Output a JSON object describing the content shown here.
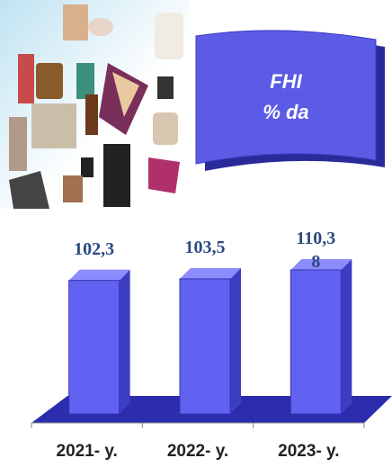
{
  "chart_data": {
    "type": "bar3d",
    "title": "FHI",
    "subtitle": "% da",
    "categories": [
      "2021- y.",
      "2022- y.",
      "2023- y."
    ],
    "values": [
      102.3,
      103.5,
      110.38
    ],
    "value_labels": [
      "102,3",
      "103,5",
      "110,38"
    ],
    "color": "#6262f2",
    "ylim": [
      0,
      120
    ]
  }
}
